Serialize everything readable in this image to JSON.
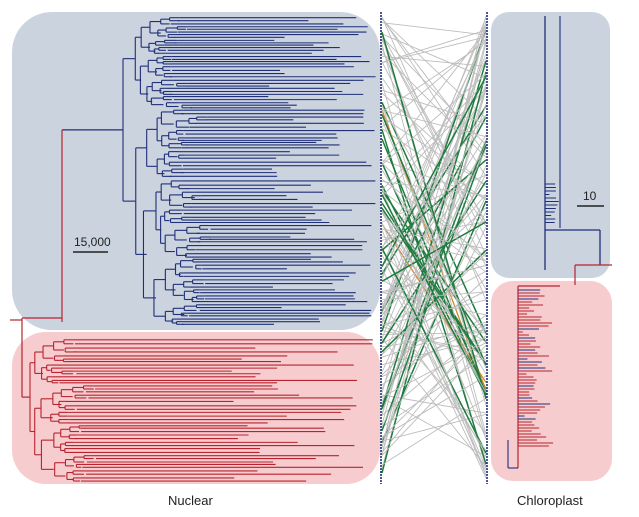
{
  "labels": {
    "nuclear": "Nuclear",
    "chloroplast": "Chloroplast"
  },
  "scale_bars": {
    "nuclear": "15,000",
    "chloroplast": "10"
  },
  "colors": {
    "nuclear_clade_blue": "#1f2f78",
    "nuclear_clade_red": "#b8232f",
    "blue_region": "#cbd3df",
    "red_region": "#f6cccf",
    "link_gray": "#bdbdbd",
    "link_green": "#1e7c3e",
    "link_orange": "#d2882a"
  }
}
